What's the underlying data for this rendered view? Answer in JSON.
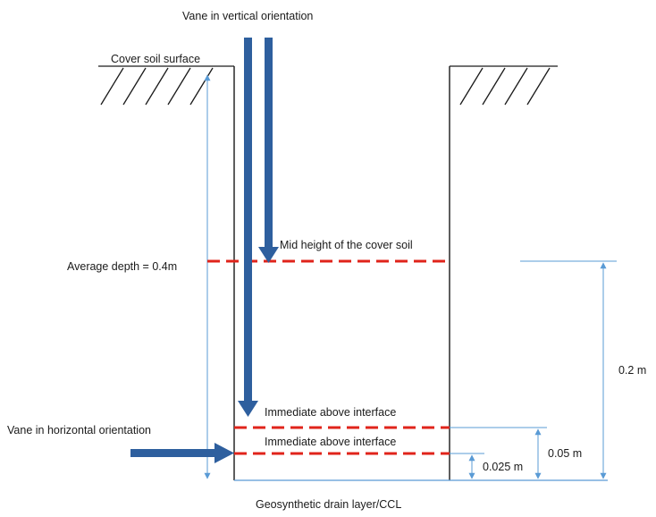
{
  "labels": {
    "vane_vertical": "Vane in vertical orientation",
    "cover_soil_surface": "Cover soil surface",
    "mid_height": "Mid height of the cover soil",
    "average_depth": "Average depth = 0.4m",
    "interface_upper": "Immediate above interface",
    "interface_lower": "Immediate above interface",
    "vane_horizontal": "Vane  in horizontal orientation",
    "bottom_layer": "Geosynthetic drain layer/CCL"
  },
  "dimensions": {
    "d_0_2": "0.2 m",
    "d_0_05": "0.05 m",
    "d_0_025": "0.025 m"
  },
  "colors": {
    "vane": "#2e5f9e",
    "measurement_level": "#e0241b",
    "dimension_line": "#5a9bd5",
    "outline": "#1a1a1a"
  }
}
